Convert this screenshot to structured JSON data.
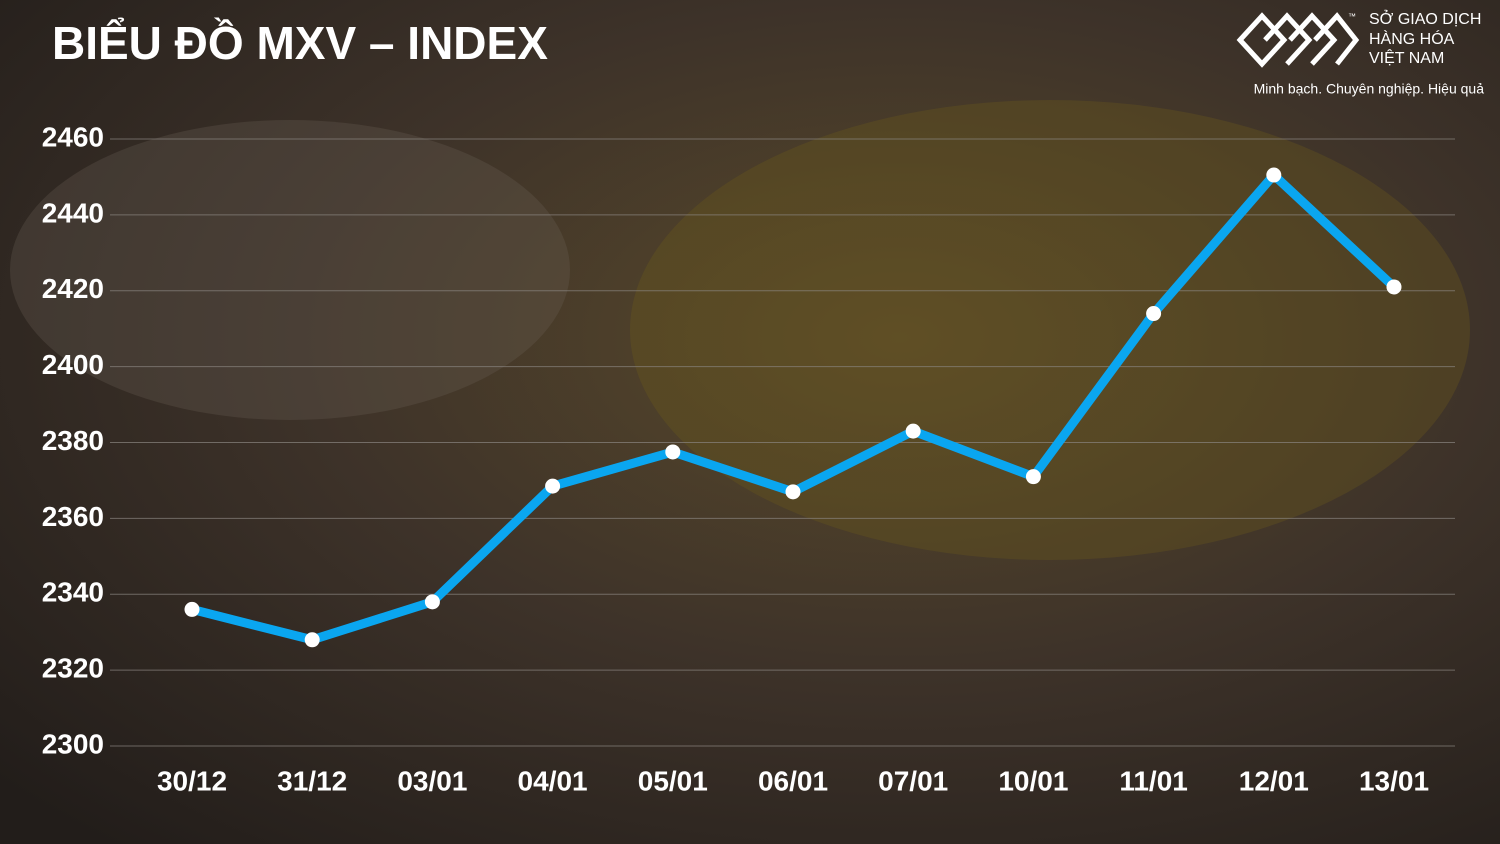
{
  "chart_data": {
    "type": "line",
    "title": "BIỂU ĐỒ MXV – INDEX",
    "categories": [
      "30/12",
      "31/12",
      "03/01",
      "04/01",
      "05/01",
      "06/01",
      "07/01",
      "10/01",
      "11/01",
      "12/01",
      "13/01"
    ],
    "values": [
      2336,
      2328,
      2338,
      2368.5,
      2377.5,
      2367,
      2383,
      2371,
      2414,
      2450.5,
      2421
    ],
    "color": "#0aa6f0",
    "ylim": [
      2300,
      2460
    ],
    "yticks": [
      2300,
      2320,
      2340,
      2360,
      2380,
      2400,
      2420,
      2440,
      2460
    ],
    "grid": true
  },
  "logo": {
    "lines": [
      "SỞ GIAO DỊCH",
      "HÀNG HÓA",
      "VIỆT NAM"
    ],
    "trademark": "™",
    "slogan": "Minh bạch. Chuyên nghiệp. Hiệu quả"
  }
}
